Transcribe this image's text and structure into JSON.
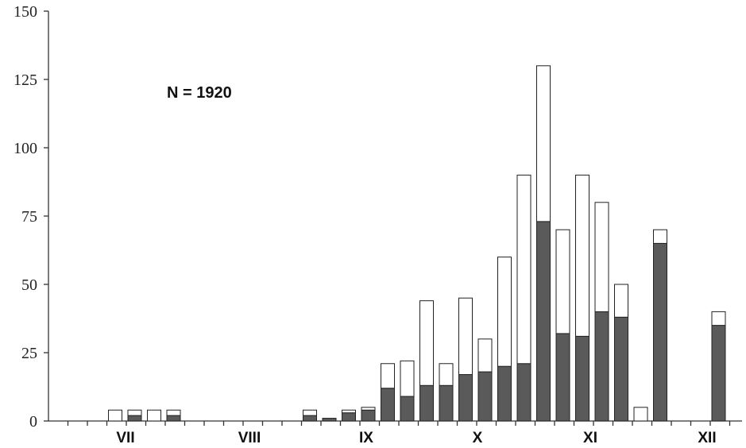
{
  "chart_data": {
    "type": "bar",
    "stacked": true,
    "annotation": "N = 1920",
    "ylim": [
      0,
      150
    ],
    "yticks": [
      0,
      25,
      50,
      75,
      100,
      125,
      150
    ],
    "month_labels": [
      "VII",
      "VIII",
      "IX",
      "X",
      "XI",
      "XII"
    ],
    "series": [
      {
        "color": "#5a5a5a",
        "values": [
          0,
          2,
          0,
          2,
          0,
          0,
          0,
          0,
          0,
          0,
          2,
          1,
          3,
          4,
          12,
          9,
          13,
          13,
          17,
          18,
          20,
          21,
          73,
          32,
          31,
          40,
          38,
          0,
          65,
          0,
          0,
          35
        ]
      },
      {
        "color": "#ffffff",
        "values": [
          4,
          2,
          4,
          2,
          0,
          0,
          0,
          0,
          0,
          0,
          2,
          0,
          1,
          1,
          9,
          13,
          31,
          8,
          28,
          12,
          40,
          69,
          57,
          38,
          59,
          40,
          12,
          5,
          5,
          0,
          0,
          5
        ]
      }
    ]
  }
}
